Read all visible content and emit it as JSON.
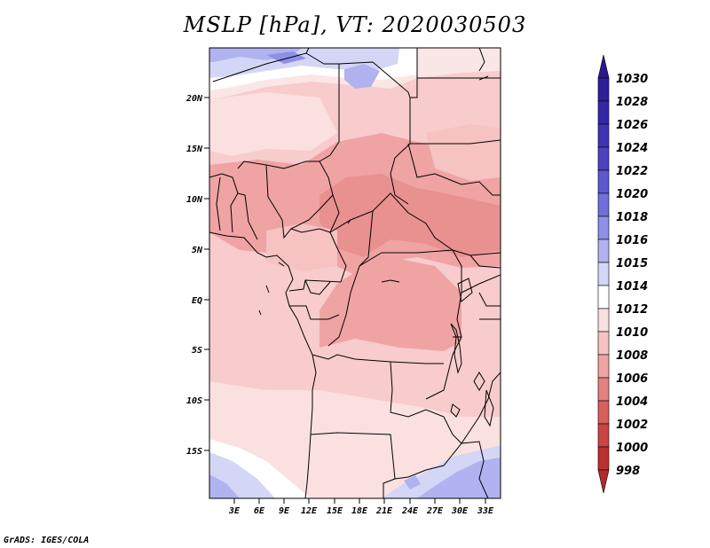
{
  "title": "MSLP [hPa], VT: 2020030503",
  "credit": "GrADS: IGES/COLA",
  "map": {
    "lon_labels": [
      "3E",
      "6E",
      "9E",
      "12E",
      "15E",
      "18E",
      "21E",
      "24E",
      "27E",
      "30E",
      "33E"
    ],
    "lat_labels": [
      "20N",
      "15N",
      "10N",
      "5N",
      "EQ",
      "5S",
      "10S",
      "15S"
    ]
  },
  "colorbar": {
    "labels": [
      "1030",
      "1028",
      "1026",
      "1024",
      "1022",
      "1020",
      "1018",
      "1016",
      "1015",
      "1014",
      "1012",
      "1010",
      "1008",
      "1006",
      "1004",
      "1002",
      "1000",
      "998"
    ],
    "colors": {
      "top_arrow": "#2a1a8c",
      "c1030": "#2e1f9a",
      "c1028": "#3526a8",
      "c1026": "#3f33b5",
      "c1024": "#4c43c2",
      "c1022": "#5c58cf",
      "c1020": "#7070dc",
      "c1018": "#8d8fe8",
      "c1016": "#b0b3f0",
      "c1015": "#d4d6f6",
      "c1014": "#ffffff",
      "c1012": "#fbe0e0",
      "c1010": "#f6c2c2",
      "c1008": "#f0a3a3",
      "c1006": "#e58080",
      "c1004": "#d95e5e",
      "c1002": "#cc4444",
      "c1000": "#bd3030",
      "c998": "#a82020",
      "bottom_arrow": "#b42a2a"
    }
  }
}
